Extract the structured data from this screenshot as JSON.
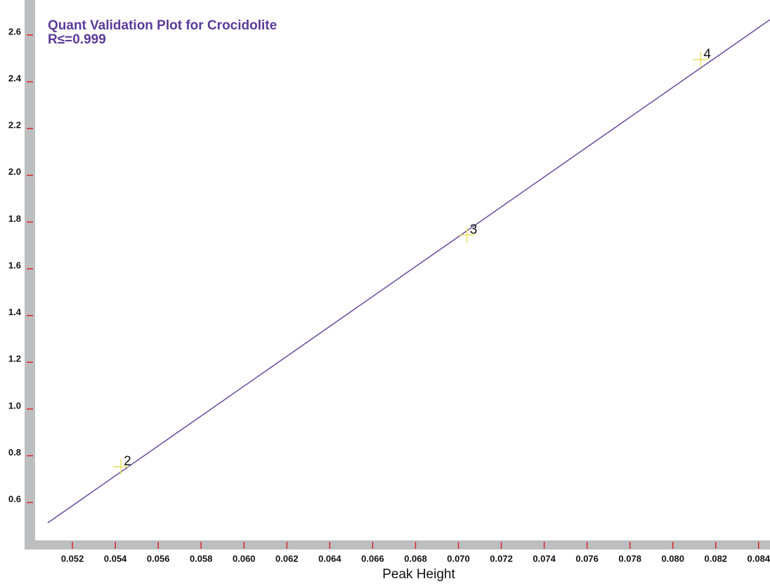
{
  "chart_data": {
    "type": "scatter",
    "title": "Quant Validation Plot for Crocidolite",
    "subtitle": "R≤=0.999",
    "x_label": "Peak Height",
    "xlim": [
      0.05026,
      0.08453
    ],
    "ylim": [
      0.438,
      2.75
    ],
    "xticks": [
      0.052,
      0.054,
      0.056,
      0.058,
      {
        "value": 0.06,
        "label": "0.060"
      },
      0.062,
      0.064,
      0.066,
      0.068,
      {
        "value": 0.07,
        "label": "0.070"
      },
      0.072,
      0.074,
      0.076,
      0.078,
      {
        "value": 0.08,
        "label": "0.080"
      },
      0.082,
      0.084
    ],
    "yticks": [
      0.6,
      0.8,
      {
        "value": 1,
        "label": "1.0"
      },
      1.2,
      1.4,
      1.6,
      1.8,
      {
        "value": 2,
        "label": "2.0"
      },
      2.2,
      2.4,
      2.6
    ],
    "tick_color": "#d9262b",
    "fit_line": {
      "color": "#6b4a9e",
      "x": [
        0.05085,
        0.08453
      ],
      "values": [
        0.513,
        2.666
      ]
    },
    "points": {
      "color": "#e8e060",
      "x": [
        0.05426,
        0.0704,
        0.0813
      ],
      "values": [
        0.753,
        1.744,
        2.495
      ],
      "labels": [
        "2",
        "3",
        "4"
      ]
    }
  }
}
